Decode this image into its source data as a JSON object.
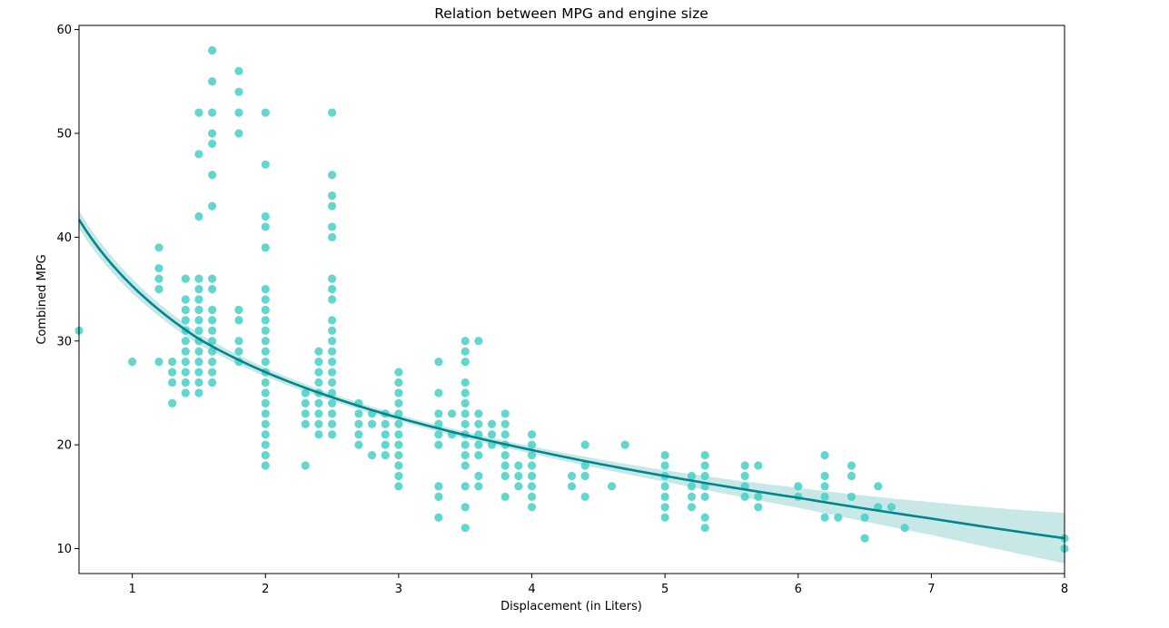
{
  "chart_data": {
    "type": "scatter",
    "title": "Relation between MPG and engine size",
    "xlabel": "Displacement (in Liters)",
    "ylabel": "Combined MPG",
    "xlim": [
      0.6,
      8.0
    ],
    "ylim": [
      7.6,
      60.4
    ],
    "xticks": [
      1,
      2,
      3,
      4,
      5,
      6,
      7,
      8
    ],
    "yticks": [
      10,
      20,
      30,
      40,
      50,
      60
    ],
    "grid": false,
    "colors": {
      "points": "#48cfc4",
      "fit": "#00868b",
      "band": "#b6e0e0"
    },
    "series": [
      {
        "kind": "points",
        "points": [
          [
            0.6,
            31
          ],
          [
            1.0,
            28
          ],
          [
            1.2,
            39
          ],
          [
            1.2,
            37
          ],
          [
            1.2,
            36
          ],
          [
            1.2,
            35
          ],
          [
            1.2,
            28
          ],
          [
            1.3,
            28
          ],
          [
            1.3,
            27
          ],
          [
            1.3,
            26
          ],
          [
            1.3,
            24
          ],
          [
            1.4,
            36
          ],
          [
            1.4,
            34
          ],
          [
            1.4,
            33
          ],
          [
            1.4,
            32
          ],
          [
            1.4,
            31
          ],
          [
            1.4,
            30
          ],
          [
            1.4,
            29
          ],
          [
            1.4,
            28
          ],
          [
            1.4,
            27
          ],
          [
            1.4,
            26
          ],
          [
            1.4,
            25
          ],
          [
            1.5,
            52
          ],
          [
            1.5,
            48
          ],
          [
            1.5,
            42
          ],
          [
            1.5,
            36
          ],
          [
            1.5,
            35
          ],
          [
            1.5,
            34
          ],
          [
            1.5,
            33
          ],
          [
            1.5,
            32
          ],
          [
            1.5,
            31
          ],
          [
            1.5,
            30
          ],
          [
            1.5,
            29
          ],
          [
            1.5,
            28
          ],
          [
            1.5,
            27
          ],
          [
            1.5,
            26
          ],
          [
            1.5,
            25
          ],
          [
            1.6,
            58
          ],
          [
            1.6,
            55
          ],
          [
            1.6,
            52
          ],
          [
            1.6,
            50
          ],
          [
            1.6,
            49
          ],
          [
            1.6,
            46
          ],
          [
            1.6,
            43
          ],
          [
            1.6,
            36
          ],
          [
            1.6,
            35
          ],
          [
            1.6,
            33
          ],
          [
            1.6,
            32
          ],
          [
            1.6,
            31
          ],
          [
            1.6,
            30
          ],
          [
            1.6,
            29
          ],
          [
            1.6,
            28
          ],
          [
            1.6,
            27
          ],
          [
            1.6,
            26
          ],
          [
            1.8,
            56
          ],
          [
            1.8,
            54
          ],
          [
            1.8,
            52
          ],
          [
            1.8,
            50
          ],
          [
            1.8,
            33
          ],
          [
            1.8,
            32
          ],
          [
            1.8,
            30
          ],
          [
            1.8,
            29
          ],
          [
            1.8,
            28
          ],
          [
            2.0,
            52
          ],
          [
            2.0,
            47
          ],
          [
            2.0,
            42
          ],
          [
            2.0,
            41
          ],
          [
            2.0,
            39
          ],
          [
            2.0,
            35
          ],
          [
            2.0,
            34
          ],
          [
            2.0,
            33
          ],
          [
            2.0,
            32
          ],
          [
            2.0,
            31
          ],
          [
            2.0,
            30
          ],
          [
            2.0,
            29
          ],
          [
            2.0,
            28
          ],
          [
            2.0,
            27
          ],
          [
            2.0,
            26
          ],
          [
            2.0,
            25
          ],
          [
            2.0,
            24
          ],
          [
            2.0,
            23
          ],
          [
            2.0,
            22
          ],
          [
            2.0,
            21
          ],
          [
            2.0,
            20
          ],
          [
            2.0,
            19
          ],
          [
            2.0,
            18
          ],
          [
            2.3,
            25
          ],
          [
            2.3,
            24
          ],
          [
            2.3,
            23
          ],
          [
            2.3,
            22
          ],
          [
            2.3,
            18
          ],
          [
            2.4,
            29
          ],
          [
            2.4,
            28
          ],
          [
            2.4,
            27
          ],
          [
            2.4,
            26
          ],
          [
            2.4,
            25
          ],
          [
            2.4,
            24
          ],
          [
            2.4,
            23
          ],
          [
            2.4,
            22
          ],
          [
            2.4,
            21
          ],
          [
            2.5,
            52
          ],
          [
            2.5,
            46
          ],
          [
            2.5,
            44
          ],
          [
            2.5,
            43
          ],
          [
            2.5,
            41
          ],
          [
            2.5,
            40
          ],
          [
            2.5,
            36
          ],
          [
            2.5,
            35
          ],
          [
            2.5,
            34
          ],
          [
            2.5,
            32
          ],
          [
            2.5,
            31
          ],
          [
            2.5,
            30
          ],
          [
            2.5,
            29
          ],
          [
            2.5,
            28
          ],
          [
            2.5,
            27
          ],
          [
            2.5,
            26
          ],
          [
            2.5,
            25
          ],
          [
            2.5,
            24
          ],
          [
            2.5,
            23
          ],
          [
            2.5,
            22
          ],
          [
            2.5,
            21
          ],
          [
            2.7,
            24
          ],
          [
            2.7,
            23
          ],
          [
            2.7,
            22
          ],
          [
            2.7,
            21
          ],
          [
            2.7,
            20
          ],
          [
            2.8,
            23
          ],
          [
            2.8,
            22
          ],
          [
            2.8,
            19
          ],
          [
            2.9,
            23
          ],
          [
            2.9,
            22
          ],
          [
            2.9,
            21
          ],
          [
            2.9,
            20
          ],
          [
            2.9,
            19
          ],
          [
            3.0,
            27
          ],
          [
            3.0,
            26
          ],
          [
            3.0,
            25
          ],
          [
            3.0,
            24
          ],
          [
            3.0,
            23
          ],
          [
            3.0,
            22
          ],
          [
            3.0,
            21
          ],
          [
            3.0,
            20
          ],
          [
            3.0,
            19
          ],
          [
            3.0,
            18
          ],
          [
            3.0,
            17
          ],
          [
            3.0,
            16
          ],
          [
            3.3,
            28
          ],
          [
            3.3,
            25
          ],
          [
            3.3,
            23
          ],
          [
            3.3,
            22
          ],
          [
            3.3,
            21
          ],
          [
            3.3,
            20
          ],
          [
            3.3,
            16
          ],
          [
            3.3,
            15
          ],
          [
            3.3,
            13
          ],
          [
            3.4,
            23
          ],
          [
            3.4,
            21
          ],
          [
            3.5,
            30
          ],
          [
            3.5,
            29
          ],
          [
            3.5,
            28
          ],
          [
            3.5,
            26
          ],
          [
            3.5,
            25
          ],
          [
            3.5,
            24
          ],
          [
            3.5,
            23
          ],
          [
            3.5,
            22
          ],
          [
            3.5,
            21
          ],
          [
            3.5,
            20
          ],
          [
            3.5,
            19
          ],
          [
            3.5,
            18
          ],
          [
            3.5,
            16
          ],
          [
            3.5,
            14
          ],
          [
            3.5,
            12
          ],
          [
            3.6,
            30
          ],
          [
            3.6,
            23
          ],
          [
            3.6,
            22
          ],
          [
            3.6,
            21
          ],
          [
            3.6,
            20
          ],
          [
            3.6,
            19
          ],
          [
            3.6,
            17
          ],
          [
            3.6,
            16
          ],
          [
            3.7,
            22
          ],
          [
            3.7,
            21
          ],
          [
            3.7,
            20
          ],
          [
            3.8,
            23
          ],
          [
            3.8,
            22
          ],
          [
            3.8,
            21
          ],
          [
            3.8,
            20
          ],
          [
            3.8,
            19
          ],
          [
            3.8,
            18
          ],
          [
            3.8,
            17
          ],
          [
            3.8,
            15
          ],
          [
            3.9,
            18
          ],
          [
            3.9,
            17
          ],
          [
            3.9,
            16
          ],
          [
            4.0,
            21
          ],
          [
            4.0,
            20
          ],
          [
            4.0,
            19
          ],
          [
            4.0,
            18
          ],
          [
            4.0,
            17
          ],
          [
            4.0,
            16
          ],
          [
            4.0,
            15
          ],
          [
            4.0,
            14
          ],
          [
            4.3,
            17
          ],
          [
            4.3,
            16
          ],
          [
            4.4,
            20
          ],
          [
            4.4,
            18
          ],
          [
            4.4,
            17
          ],
          [
            4.4,
            15
          ],
          [
            4.6,
            16
          ],
          [
            4.7,
            20
          ],
          [
            5.0,
            19
          ],
          [
            5.0,
            18
          ],
          [
            5.0,
            17
          ],
          [
            5.0,
            16
          ],
          [
            5.0,
            15
          ],
          [
            5.0,
            14
          ],
          [
            5.0,
            13
          ],
          [
            5.2,
            17
          ],
          [
            5.2,
            16
          ],
          [
            5.2,
            15
          ],
          [
            5.2,
            14
          ],
          [
            5.3,
            19
          ],
          [
            5.3,
            18
          ],
          [
            5.3,
            17
          ],
          [
            5.3,
            16
          ],
          [
            5.3,
            15
          ],
          [
            5.3,
            13
          ],
          [
            5.3,
            12
          ],
          [
            5.6,
            18
          ],
          [
            5.6,
            17
          ],
          [
            5.6,
            16
          ],
          [
            5.6,
            15
          ],
          [
            5.7,
            18
          ],
          [
            5.7,
            15
          ],
          [
            5.7,
            14
          ],
          [
            6.0,
            16
          ],
          [
            6.0,
            15
          ],
          [
            6.2,
            19
          ],
          [
            6.2,
            17
          ],
          [
            6.2,
            16
          ],
          [
            6.2,
            15
          ],
          [
            6.2,
            13
          ],
          [
            6.3,
            13
          ],
          [
            6.4,
            18
          ],
          [
            6.4,
            17
          ],
          [
            6.4,
            15
          ],
          [
            6.5,
            13
          ],
          [
            6.5,
            11
          ],
          [
            6.6,
            16
          ],
          [
            6.6,
            14
          ],
          [
            6.7,
            14
          ],
          [
            6.8,
            12
          ],
          [
            8.0,
            11
          ],
          [
            8.0,
            10
          ]
        ]
      },
      {
        "kind": "fit",
        "curve": [
          [
            0.6,
            41.7
          ],
          [
            1.0,
            35.3
          ],
          [
            1.5,
            30.2
          ],
          [
            2.0,
            27.0
          ],
          [
            3.0,
            22.6
          ],
          [
            4.0,
            19.5
          ],
          [
            5.0,
            17.0
          ],
          [
            6.0,
            14.9
          ],
          [
            7.0,
            12.9
          ],
          [
            8.0,
            11.0
          ]
        ]
      }
    ]
  }
}
